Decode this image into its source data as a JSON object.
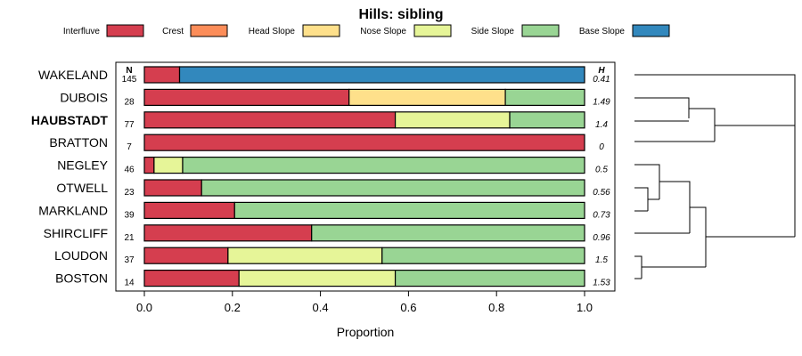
{
  "chart_data": {
    "type": "stacked-bar",
    "title": "Hills: sibling",
    "xlabel": "Proportion",
    "xlim": [
      0,
      1
    ],
    "xticks": [
      "0.0",
      "0.2",
      "0.4",
      "0.6",
      "0.8",
      "1.0"
    ],
    "n_header": "N",
    "h_header": "H",
    "legend": [
      {
        "name": "Interfluve",
        "color": "#d53e4f"
      },
      {
        "name": "Crest",
        "color": "#fc8d59"
      },
      {
        "name": "Head Slope",
        "color": "#fee08b"
      },
      {
        "name": "Nose Slope",
        "color": "#e6f598"
      },
      {
        "name": "Side Slope",
        "color": "#99d594"
      },
      {
        "name": "Base Slope",
        "color": "#3288bd"
      }
    ],
    "rows": [
      {
        "name": "WAKELAND",
        "n": "145",
        "h": "0.41",
        "bold": false,
        "values": [
          0.08,
          0,
          0,
          0,
          0,
          0.92
        ]
      },
      {
        "name": "DUBOIS",
        "n": "28",
        "h": "1.49",
        "bold": false,
        "values": [
          0.465,
          0,
          0.355,
          0,
          0.18,
          0
        ]
      },
      {
        "name": "HAUBSTADT",
        "n": "77",
        "h": "1.4",
        "bold": true,
        "values": [
          0.57,
          0,
          0,
          0.26,
          0.17,
          0
        ]
      },
      {
        "name": "BRATTON",
        "n": "7",
        "h": "0",
        "bold": false,
        "values": [
          1.0,
          0,
          0,
          0,
          0,
          0
        ]
      },
      {
        "name": "NEGLEY",
        "n": "46",
        "h": "0.5",
        "bold": false,
        "values": [
          0.022,
          0,
          0,
          0.065,
          0.913,
          0
        ]
      },
      {
        "name": "OTWELL",
        "n": "23",
        "h": "0.56",
        "bold": false,
        "values": [
          0.13,
          0,
          0,
          0,
          0.87,
          0
        ]
      },
      {
        "name": "MARKLAND",
        "n": "39",
        "h": "0.73",
        "bold": false,
        "values": [
          0.205,
          0,
          0,
          0,
          0.795,
          0
        ]
      },
      {
        "name": "SHIRCLIFF",
        "n": "21",
        "h": "0.96",
        "bold": false,
        "values": [
          0.38,
          0,
          0,
          0,
          0.62,
          0
        ]
      },
      {
        "name": "LOUDON",
        "n": "37",
        "h": "1.5",
        "bold": false,
        "values": [
          0.19,
          0,
          0,
          0.35,
          0.46,
          0
        ]
      },
      {
        "name": "BOSTON",
        "n": "14",
        "h": "1.53",
        "bold": false,
        "values": [
          0.215,
          0,
          0,
          0.355,
          0.43,
          0
        ]
      }
    ]
  }
}
